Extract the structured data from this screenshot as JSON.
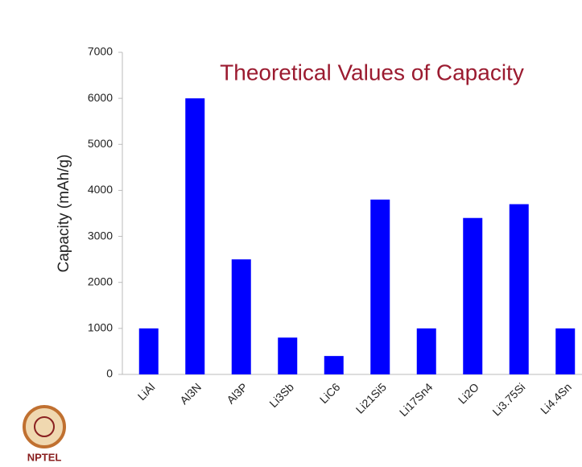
{
  "chart_data": {
    "type": "bar",
    "title": "Theoretical Values of Capacity",
    "y_label": "Capacity (mAh/g)",
    "categories": [
      "LiAl",
      "Al3N",
      "Al3P",
      "Li3Sb",
      "LiC6",
      "Li21Si5",
      "Li17Sn4",
      "Li2O",
      "Li3.75Si",
      "Li4.4Sn"
    ],
    "values": [
      1000,
      6000,
      2500,
      800,
      400,
      3800,
      1000,
      3400,
      3700,
      1000
    ],
    "color": "#0000ff",
    "ylim": [
      0,
      7000
    ],
    "yticks": [
      0,
      1000,
      2000,
      3000,
      4000,
      5000,
      6000,
      7000
    ],
    "grid": false
  },
  "logo": "NPTEL"
}
